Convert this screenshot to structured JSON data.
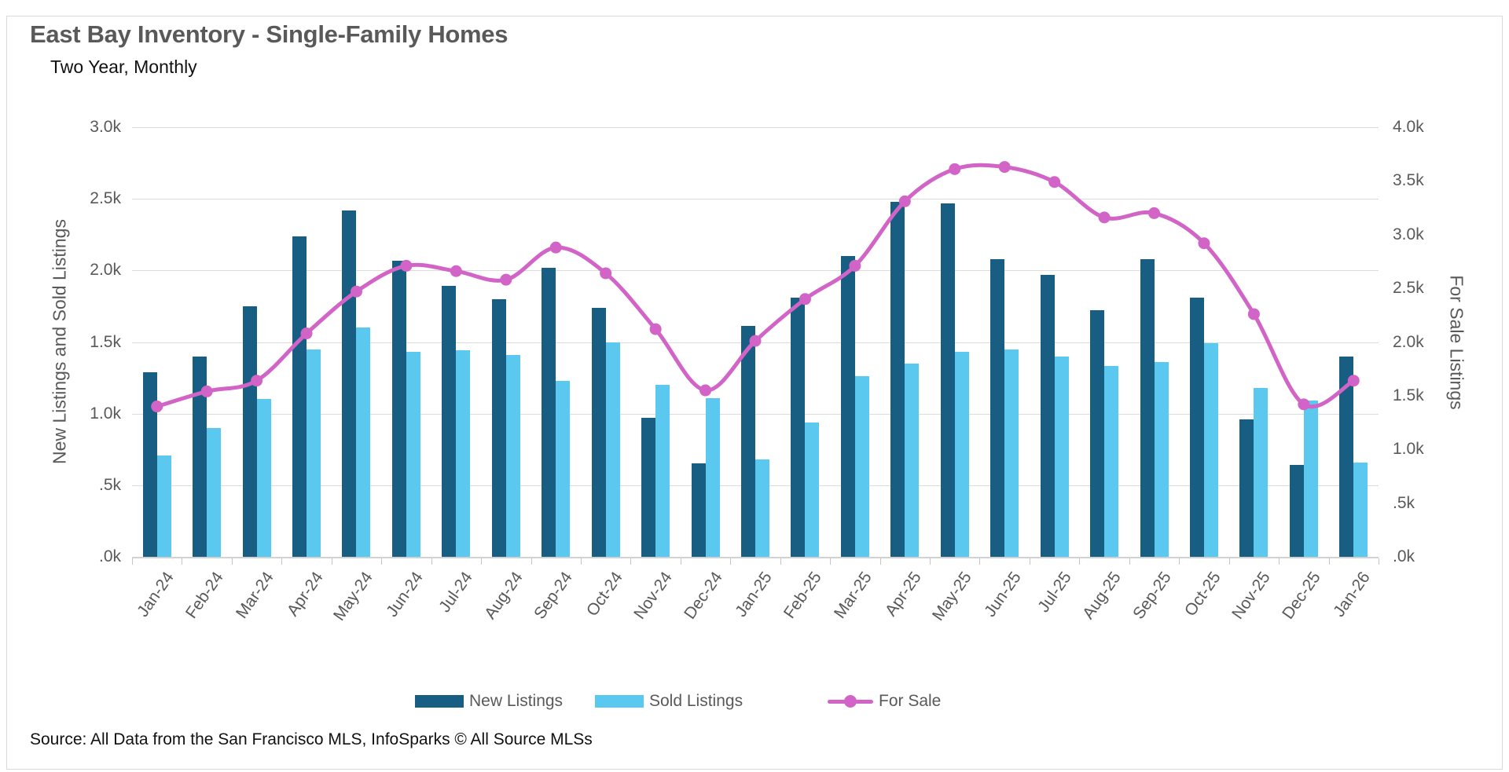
{
  "header": {
    "title": "East Bay Inventory - Single-Family Homes",
    "subtitle": "Two Year, Monthly"
  },
  "source_note": "Source: All Data from the San Francisco MLS, InfoSparks © All Source MLSs",
  "left_axis": {
    "title": "New Listings and Sold Listings",
    "tick_labels": [
      "3.0k",
      "2.5k",
      "2.0k",
      "1.5k",
      "1.0k",
      ".5k",
      ".0k"
    ]
  },
  "right_axis": {
    "title": "For Sale Listings",
    "tick_labels": [
      "4.0k",
      "3.5k",
      "3.0k",
      "2.5k",
      "2.0k",
      "1.5k",
      "1.0k",
      ".5k",
      ".0k"
    ]
  },
  "colors": {
    "new_listings": "#175E82",
    "sold_listings": "#5BC8EF",
    "for_sale": "#D164C6",
    "gridline": "#dcdcdc",
    "axis_text": "#595959"
  },
  "legend": {
    "items": [
      {
        "label": "New Listings",
        "marker": "bar",
        "color": "#175E82"
      },
      {
        "label": "Sold Listings",
        "marker": "bar",
        "color": "#5BC8EF"
      },
      {
        "label": "For Sale",
        "marker": "line-dot",
        "color": "#D164C6"
      }
    ]
  },
  "chart_data": {
    "type": "bar+line",
    "title": "East Bay Inventory - Single-Family Homes",
    "subtitle": "Two Year, Monthly",
    "categories": [
      "Jan-24",
      "Feb-24",
      "Mar-24",
      "Apr-24",
      "May-24",
      "Jun-24",
      "Jul-24",
      "Aug-24",
      "Sep-24",
      "Oct-24",
      "Nov-24",
      "Dec-24",
      "Jan-25",
      "Feb-25",
      "Mar-25",
      "Apr-25",
      "May-25",
      "Jun-25",
      "Jul-25",
      "Aug-25",
      "Sep-25",
      "Oct-25",
      "Nov-25",
      "Dec-25",
      "Jan-26"
    ],
    "series": [
      {
        "name": "New Listings",
        "type": "bar",
        "axis": "left",
        "color": "#175E82",
        "values": [
          1290,
          1400,
          1750,
          2240,
          2420,
          2070,
          1890,
          1800,
          2020,
          1740,
          970,
          650,
          1610,
          1810,
          2100,
          2480,
          2470,
          2080,
          1970,
          1720,
          2080,
          1810,
          960,
          640,
          1400
        ]
      },
      {
        "name": "Sold Listings",
        "type": "bar",
        "axis": "left",
        "color": "#5BC8EF",
        "values": [
          710,
          900,
          1100,
          1450,
          1600,
          1430,
          1440,
          1410,
          1230,
          1500,
          1200,
          1110,
          680,
          940,
          1260,
          1350,
          1430,
          1450,
          1400,
          1330,
          1360,
          1490,
          1180,
          1090,
          660
        ]
      },
      {
        "name": "For Sale",
        "type": "line",
        "axis": "right",
        "color": "#D164C6",
        "values": [
          1400,
          1540,
          1640,
          2080,
          2470,
          2710,
          2660,
          2580,
          2880,
          2640,
          2120,
          1550,
          2010,
          2400,
          2710,
          3310,
          3610,
          3630,
          3490,
          3160,
          3200,
          2920,
          2260,
          1420,
          1640
        ]
      }
    ],
    "left_ylabel": "New Listings and Sold Listings",
    "right_ylabel": "For Sale Listings",
    "left_ylim": [
      0,
      3000
    ],
    "right_ylim": [
      0,
      4000
    ],
    "grid": "horizontal",
    "legend_position": "bottom"
  }
}
